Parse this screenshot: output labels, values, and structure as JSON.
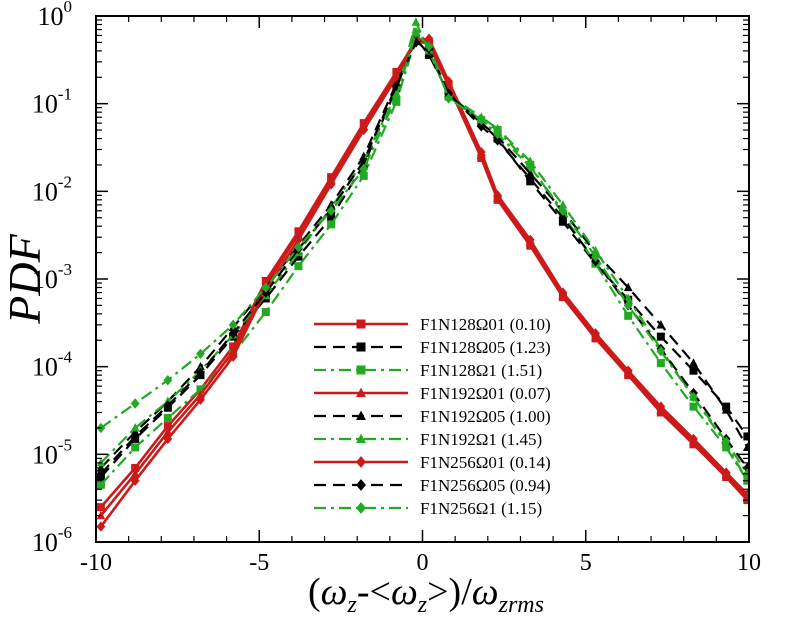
{
  "chart_data": {
    "type": "line",
    "ylabel": "PDF",
    "xlabel_parts": {
      "open": "(",
      "omega": "ω",
      "z_sub": "z",
      "minus": "-<",
      "close_angle": ">)/",
      "rms_sub": "zrms"
    },
    "xlim": [
      -10,
      10
    ],
    "ylim_log10": [
      -6,
      0
    ],
    "xticks": [
      -10,
      -5,
      0,
      5,
      10
    ],
    "xtick_labels": [
      "-10",
      "-5",
      "0",
      "5",
      "10"
    ],
    "yticks": [
      {
        "mant": "10",
        "exp": "-6"
      },
      {
        "mant": "10",
        "exp": "-5"
      },
      {
        "mant": "10",
        "exp": "-4"
      },
      {
        "mant": "10",
        "exp": "-3"
      },
      {
        "mant": "10",
        "exp": "-2"
      },
      {
        "mant": "10",
        "exp": "-1"
      },
      {
        "mant": "10",
        "exp": "0"
      }
    ],
    "legend_position": "lower-center",
    "series": [
      {
        "name": "F1N128Ω01 (0.10)",
        "color": "#cc1a1a",
        "dash": "solid",
        "marker": "square",
        "x": [
          -9.85,
          -8.8,
          -7.8,
          -6.8,
          -5.8,
          -4.8,
          -3.8,
          -2.8,
          -1.8,
          -0.8,
          -0.2,
          0.2,
          0.8,
          1.8,
          2.3,
          3.3,
          4.3,
          5.3,
          6.3,
          7.3,
          8.3,
          9.3,
          9.95
        ],
        "y": [
          2.5e-06,
          7e-06,
          2.1e-05,
          5.5e-05,
          0.00017,
          0.00095,
          0.0035,
          0.0145,
          0.06,
          0.23,
          0.52,
          0.48,
          0.16,
          0.024,
          0.008,
          0.0024,
          0.00062,
          0.00021,
          8e-05,
          3e-05,
          1.3e-05,
          5.5e-06,
          3e-06
        ]
      },
      {
        "name": "F1N128Ω05 (1.23)",
        "color": "#000000",
        "dash": "dash",
        "marker": "square",
        "x": [
          -9.85,
          -8.8,
          -7.8,
          -6.8,
          -5.8,
          -4.8,
          -3.8,
          -2.8,
          -1.8,
          -0.8,
          -0.2,
          0.2,
          0.8,
          1.8,
          2.3,
          3.3,
          4.3,
          5.3,
          6.3,
          7.3,
          8.3,
          9.3,
          9.95
        ],
        "y": [
          5.5e-06,
          1.5e-05,
          3.4e-05,
          8e-05,
          0.00022,
          0.0006,
          0.0018,
          0.005,
          0.02,
          0.15,
          0.55,
          0.36,
          0.13,
          0.06,
          0.04,
          0.013,
          0.0045,
          0.0015,
          0.00058,
          0.00022,
          9e-05,
          3.5e-05,
          1.6e-05
        ]
      },
      {
        "name": "F1N128Ω1 (1.51)",
        "color": "#22aa22",
        "dash": "dashdot",
        "marker": "square",
        "x": [
          -9.85,
          -8.8,
          -7.8,
          -6.8,
          -5.8,
          -4.8,
          -3.8,
          -2.8,
          -1.8,
          -0.8,
          -0.2,
          0.2,
          0.8,
          1.8,
          2.3,
          3.3,
          4.3,
          5.3,
          6.3,
          7.3,
          8.3,
          9.3,
          9.95
        ],
        "y": [
          4.5e-06,
          1.2e-05,
          2.6e-05,
          5.5e-05,
          0.00014,
          0.00042,
          0.0014,
          0.0042,
          0.015,
          0.105,
          0.56,
          0.4,
          0.12,
          0.065,
          0.05,
          0.02,
          0.0055,
          0.0015,
          0.00038,
          0.00011,
          3.5e-05,
          1.2e-05,
          5e-06
        ]
      },
      {
        "name": "F1N192Ω01 (0.07)",
        "color": "#cc1a1a",
        "dash": "solid",
        "marker": "triangle",
        "x": [
          -9.85,
          -8.8,
          -7.8,
          -6.8,
          -5.8,
          -4.8,
          -3.8,
          -2.8,
          -1.8,
          -0.8,
          -0.2,
          0.2,
          0.8,
          1.8,
          2.3,
          3.3,
          4.3,
          5.3,
          6.3,
          7.3,
          8.3,
          9.3,
          9.95
        ],
        "y": [
          2e-06,
          6e-06,
          1.8e-05,
          4.8e-05,
          0.00015,
          0.00085,
          0.0032,
          0.0135,
          0.055,
          0.22,
          0.54,
          0.5,
          0.17,
          0.026,
          0.0085,
          0.0026,
          0.00065,
          0.00022,
          8.5e-05,
          3.2e-05,
          1.4e-05,
          5.8e-06,
          3.2e-06
        ]
      },
      {
        "name": "F1N192Ω05 (1.00)",
        "color": "#000000",
        "dash": "dash",
        "marker": "triangle",
        "x": [
          -9.85,
          -8.8,
          -7.8,
          -6.8,
          -5.8,
          -4.8,
          -3.8,
          -2.8,
          -1.8,
          -0.8,
          -0.2,
          0.2,
          0.8,
          1.8,
          2.3,
          3.3,
          4.3,
          5.3,
          6.3,
          7.3,
          8.3,
          9.3,
          9.95
        ],
        "y": [
          7e-06,
          1.8e-05,
          4e-05,
          0.0001,
          0.00028,
          0.0008,
          0.0024,
          0.007,
          0.025,
          0.17,
          0.56,
          0.38,
          0.13,
          0.06,
          0.042,
          0.016,
          0.006,
          0.002,
          0.0008,
          0.0003,
          0.00011,
          3.2e-05,
          1.2e-05
        ]
      },
      {
        "name": "F1N192Ω1 (1.45)",
        "color": "#22aa22",
        "dash": "dashdot",
        "marker": "triangle",
        "x": [
          -9.85,
          -8.8,
          -7.8,
          -6.8,
          -5.8,
          -4.8,
          -3.8,
          -2.8,
          -1.8,
          -0.8,
          -0.2,
          0.2,
          0.8,
          1.8,
          2.3,
          3.3,
          4.3,
          5.3,
          6.3,
          7.3,
          8.3,
          9.3,
          9.95
        ],
        "y": [
          8e-06,
          2e-05,
          4e-05,
          9e-05,
          0.00023,
          0.00065,
          0.002,
          0.0065,
          0.022,
          0.13,
          0.85,
          0.4,
          0.125,
          0.07,
          0.052,
          0.022,
          0.007,
          0.0021,
          0.0006,
          0.00016,
          4.5e-05,
          1.3e-05,
          5e-06
        ]
      },
      {
        "name": "F1N256Ω01 (0.14)",
        "color": "#cc1a1a",
        "dash": "solid",
        "marker": "diamond",
        "x": [
          -9.85,
          -8.8,
          -7.8,
          -6.8,
          -5.8,
          -4.8,
          -3.8,
          -2.8,
          -1.8,
          -0.8,
          -0.2,
          0.2,
          0.8,
          1.8,
          2.3,
          3.3,
          4.3,
          5.3,
          6.3,
          7.3,
          8.3,
          9.3,
          9.95
        ],
        "y": [
          1.5e-06,
          5e-06,
          1.5e-05,
          4.2e-05,
          0.00013,
          0.00075,
          0.0028,
          0.012,
          0.05,
          0.2,
          0.53,
          0.55,
          0.18,
          0.028,
          0.009,
          0.0028,
          0.0007,
          0.00024,
          9e-05,
          3.5e-05,
          1.5e-05,
          6.2e-06,
          3.5e-06
        ]
      },
      {
        "name": "F1N256Ω05 (0.94)",
        "color": "#000000",
        "dash": "dash",
        "marker": "diamond",
        "x": [
          -9.85,
          -8.8,
          -7.8,
          -6.8,
          -5.8,
          -4.8,
          -3.8,
          -2.8,
          -1.8,
          -0.8,
          -0.2,
          0.2,
          0.8,
          1.8,
          2.3,
          3.3,
          4.3,
          5.3,
          6.3,
          7.3,
          8.3,
          9.3,
          9.95
        ],
        "y": [
          6e-06,
          1.6e-05,
          3.6e-05,
          8.5e-05,
          0.00024,
          0.0007,
          0.0022,
          0.0062,
          0.022,
          0.16,
          0.5,
          0.42,
          0.13,
          0.055,
          0.038,
          0.014,
          0.005,
          0.0016,
          0.0005,
          0.00016,
          5e-05,
          1.5e-05,
          7e-06
        ]
      },
      {
        "name": "F1N256Ω1 (1.15)",
        "color": "#22aa22",
        "dash": "dashdot",
        "marker": "diamond",
        "x": [
          -9.85,
          -8.8,
          -7.8,
          -6.8,
          -5.8,
          -4.8,
          -3.8,
          -2.8,
          -1.8,
          -0.8,
          -0.2,
          0.2,
          0.8,
          1.8,
          2.3,
          3.3,
          4.3,
          5.3,
          6.3,
          7.3,
          8.3,
          9.3,
          9.95
        ],
        "y": [
          2e-05,
          3.8e-05,
          7e-05,
          0.00014,
          0.0003,
          0.0008,
          0.0023,
          0.006,
          0.018,
          0.12,
          0.65,
          0.45,
          0.115,
          0.065,
          0.045,
          0.019,
          0.006,
          0.0018,
          0.0005,
          0.00015,
          4.5e-05,
          1.4e-05,
          6e-06
        ]
      }
    ]
  }
}
